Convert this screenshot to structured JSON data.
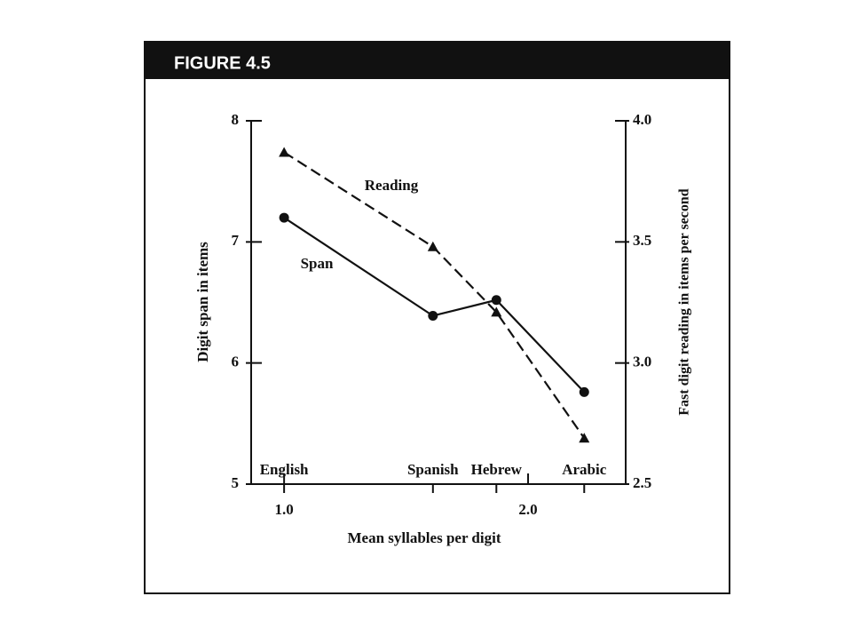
{
  "chart_data": {
    "type": "line",
    "figure_label": "FIGURE 4.5",
    "xlabel": "Mean syllables per digit",
    "ylabel": "Digit span in items",
    "y2label": "Fast digit reading in items per second",
    "x": [
      1.0,
      1.61,
      1.87,
      2.23
    ],
    "x_labels": [
      "English",
      "Spanish",
      "Hebrew",
      "Arabic"
    ],
    "xlim": [
      0.865,
      2.4
    ],
    "xticks": [
      {
        "value": 1,
        "label": "1.0"
      },
      {
        "value": 2,
        "label": "2.0"
      }
    ],
    "ylim": [
      5,
      8
    ],
    "yticks": [
      5,
      6,
      7,
      8
    ],
    "y2lim": [
      2.5,
      4.0
    ],
    "y2ticks": [
      2.5,
      {
        "value": 3,
        "label": "3.0"
      },
      3.5,
      {
        "value": 4,
        "label": "4.0"
      }
    ],
    "series": [
      {
        "name": "Span",
        "color": "#111111",
        "marker": "circle",
        "dash": false,
        "values": [
          7.2,
          6.39,
          6.52,
          5.76
        ]
      },
      {
        "name": "Reading",
        "color": "#111111",
        "marker": "triangle",
        "dash": true,
        "axis": "y2",
        "values": [
          3.87,
          3.48,
          3.21,
          2.69
        ]
      }
    ]
  }
}
